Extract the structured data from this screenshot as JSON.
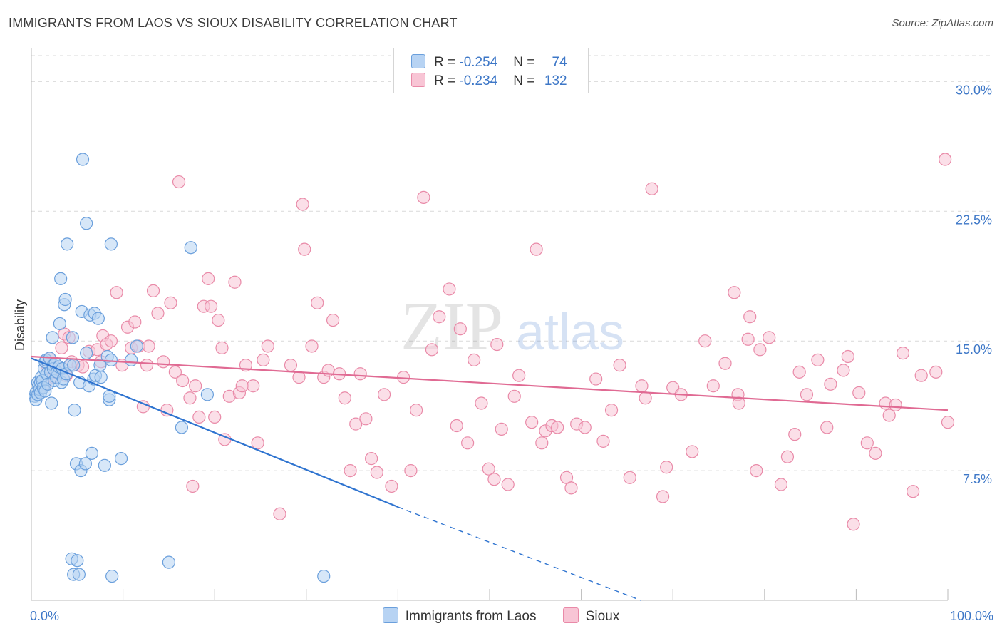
{
  "header": {
    "title": "IMMIGRANTS FROM LAOS VS SIOUX DISABILITY CORRELATION CHART",
    "source": "Source: ZipAtlas.com"
  },
  "watermark": {
    "zip": "ZIP",
    "atlas": "atlas"
  },
  "legend": {
    "rows": [
      {
        "r_label": "R = ",
        "r_value": "-0.254",
        "n_label": "N = ",
        "n_value": "74"
      },
      {
        "r_label": "R = ",
        "r_value": "-0.234",
        "n_label": "N = ",
        "n_value": "132"
      }
    ]
  },
  "colors": {
    "blue_fill": "#b7d3f3",
    "blue_stroke": "#6a9fdc",
    "blue_line": "#2f74d0",
    "pink_fill": "#f8c5d5",
    "pink_stroke": "#e98aa8",
    "pink_line": "#e06a93",
    "grid": "#d9d9d9",
    "tick_text": "#3d77c7"
  },
  "chart_data": {
    "type": "scatter",
    "title": "IMMIGRANTS FROM LAOS VS SIOUX DISABILITY CORRELATION CHART",
    "xlabel": "",
    "ylabel": "Disability",
    "xlim": [
      0,
      100
    ],
    "ylim": [
      0,
      31.5
    ],
    "x_ticks": [
      "0.0%",
      "100.0%"
    ],
    "y_ticks": [
      {
        "value": 7.5,
        "label": "7.5%"
      },
      {
        "value": 15.0,
        "label": "15.0%"
      },
      {
        "value": 22.5,
        "label": "22.5%"
      },
      {
        "value": 30.0,
        "label": "30.0%"
      }
    ],
    "grid": true,
    "legend_position": "top-center",
    "series": [
      {
        "name": "Immigrants from Laos",
        "color": "#6a9fdc",
        "trend": {
          "x": [
            0,
            40
          ],
          "y": [
            14.0,
            5.4
          ],
          "dashed_to": [
            66.5,
            0
          ]
        },
        "points": [
          [
            0.4,
            11.8
          ],
          [
            0.5,
            12.0
          ],
          [
            0.5,
            11.6
          ],
          [
            0.7,
            12.6
          ],
          [
            0.7,
            11.9
          ],
          [
            0.8,
            12.4
          ],
          [
            0.9,
            12.2
          ],
          [
            1.0,
            12.6
          ],
          [
            1.0,
            12.0
          ],
          [
            1.1,
            12.9
          ],
          [
            1.2,
            12.7
          ],
          [
            1.3,
            12.3
          ],
          [
            1.4,
            13.4
          ],
          [
            1.5,
            12.1
          ],
          [
            1.5,
            13.8
          ],
          [
            1.6,
            13.9
          ],
          [
            1.7,
            13.1
          ],
          [
            1.8,
            12.5
          ],
          [
            2.0,
            14.0
          ],
          [
            2.1,
            13.2
          ],
          [
            2.2,
            11.4
          ],
          [
            2.3,
            15.2
          ],
          [
            2.4,
            13.6
          ],
          [
            2.4,
            13.4
          ],
          [
            2.5,
            12.7
          ],
          [
            2.6,
            13.7
          ],
          [
            2.7,
            12.9
          ],
          [
            2.8,
            13.2
          ],
          [
            3.0,
            13.5
          ],
          [
            3.1,
            16.0
          ],
          [
            3.2,
            18.6
          ],
          [
            3.3,
            12.6
          ],
          [
            3.4,
            13.4
          ],
          [
            3.5,
            12.8
          ],
          [
            3.6,
            17.1
          ],
          [
            3.7,
            17.4
          ],
          [
            3.8,
            13.1
          ],
          [
            3.9,
            20.6
          ],
          [
            4.2,
            13.6
          ],
          [
            4.5,
            15.2
          ],
          [
            4.6,
            13.6
          ],
          [
            4.7,
            11.0
          ],
          [
            4.9,
            7.9
          ],
          [
            5.3,
            12.6
          ],
          [
            5.4,
            7.5
          ],
          [
            5.5,
            16.7
          ],
          [
            5.6,
            25.5
          ],
          [
            5.9,
            7.9
          ],
          [
            6.0,
            21.8
          ],
          [
            6.3,
            12.4
          ],
          [
            6.4,
            16.5
          ],
          [
            6.6,
            8.5
          ],
          [
            6.8,
            12.8
          ],
          [
            6.9,
            16.6
          ],
          [
            7.0,
            13.0
          ],
          [
            7.3,
            16.3
          ],
          [
            7.5,
            13.6
          ],
          [
            7.6,
            12.9
          ],
          [
            8.0,
            7.8
          ],
          [
            8.3,
            14.1
          ],
          [
            8.5,
            11.6
          ],
          [
            8.7,
            20.6
          ],
          [
            8.7,
            13.9
          ],
          [
            8.5,
            11.8
          ],
          [
            9.8,
            8.2
          ],
          [
            10.9,
            13.9
          ],
          [
            11.5,
            14.7
          ],
          [
            4.4,
            2.4
          ],
          [
            4.6,
            1.5
          ],
          [
            5.0,
            2.3
          ],
          [
            8.8,
            1.4
          ],
          [
            15.0,
            2.2
          ],
          [
            17.4,
            20.4
          ],
          [
            19.2,
            11.9
          ],
          [
            31.9,
            1.4
          ],
          [
            5.2,
            1.5
          ],
          [
            16.4,
            10.0
          ],
          [
            6.0,
            14.3
          ]
        ]
      },
      {
        "name": "Sioux",
        "color": "#e98aa8",
        "trend": {
          "x": [
            0,
            100
          ],
          "y": [
            14.1,
            11.0
          ]
        },
        "points": [
          [
            1.5,
            12.5
          ],
          [
            1.8,
            13.5
          ],
          [
            2.0,
            14.0
          ],
          [
            2.4,
            12.9
          ],
          [
            2.6,
            13.2
          ],
          [
            3.0,
            13.5
          ],
          [
            3.3,
            14.6
          ],
          [
            3.6,
            15.4
          ],
          [
            3.8,
            13.0
          ],
          [
            4.1,
            15.2
          ],
          [
            4.4,
            13.8
          ],
          [
            5.1,
            13.6
          ],
          [
            5.6,
            13.5
          ],
          [
            6.3,
            14.4
          ],
          [
            7.2,
            14.5
          ],
          [
            7.6,
            13.8
          ],
          [
            7.8,
            15.3
          ],
          [
            8.2,
            14.8
          ],
          [
            8.7,
            15.0
          ],
          [
            9.3,
            17.8
          ],
          [
            9.9,
            13.6
          ],
          [
            10.5,
            15.8
          ],
          [
            10.9,
            14.6
          ],
          [
            11.3,
            16.1
          ],
          [
            11.7,
            14.7
          ],
          [
            12.2,
            11.2
          ],
          [
            12.6,
            13.6
          ],
          [
            12.8,
            14.7
          ],
          [
            13.3,
            17.9
          ],
          [
            13.8,
            16.6
          ],
          [
            14.4,
            13.8
          ],
          [
            14.8,
            11.0
          ],
          [
            15.2,
            17.2
          ],
          [
            15.7,
            13.2
          ],
          [
            16.1,
            24.2
          ],
          [
            16.5,
            12.7
          ],
          [
            17.3,
            11.7
          ],
          [
            17.6,
            6.6
          ],
          [
            17.9,
            12.4
          ],
          [
            18.3,
            10.6
          ],
          [
            18.8,
            17.0
          ],
          [
            19.3,
            18.6
          ],
          [
            19.6,
            17.0
          ],
          [
            20.0,
            10.6
          ],
          [
            20.4,
            16.2
          ],
          [
            20.8,
            14.6
          ],
          [
            21.1,
            9.3
          ],
          [
            21.6,
            11.8
          ],
          [
            22.2,
            18.4
          ],
          [
            22.7,
            12.0
          ],
          [
            23.0,
            12.4
          ],
          [
            23.4,
            13.6
          ],
          [
            24.2,
            12.4
          ],
          [
            24.7,
            9.1
          ],
          [
            25.3,
            13.9
          ],
          [
            25.8,
            14.7
          ],
          [
            27.1,
            5.0
          ],
          [
            28.3,
            13.6
          ],
          [
            29.2,
            12.9
          ],
          [
            29.6,
            22.9
          ],
          [
            29.8,
            20.3
          ],
          [
            30.6,
            14.7
          ],
          [
            31.2,
            17.2
          ],
          [
            31.9,
            12.9
          ],
          [
            32.4,
            13.3
          ],
          [
            32.9,
            16.2
          ],
          [
            33.6,
            13.1
          ],
          [
            34.2,
            11.7
          ],
          [
            34.8,
            7.5
          ],
          [
            35.4,
            10.2
          ],
          [
            35.9,
            13.1
          ],
          [
            36.5,
            10.5
          ],
          [
            37.1,
            8.2
          ],
          [
            37.7,
            7.4
          ],
          [
            38.5,
            11.9
          ],
          [
            39.3,
            6.6
          ],
          [
            40.6,
            12.9
          ],
          [
            41.4,
            7.5
          ],
          [
            42.0,
            11.0
          ],
          [
            42.8,
            23.3
          ],
          [
            43.7,
            14.5
          ],
          [
            44.5,
            16.4
          ],
          [
            45.6,
            18.0
          ],
          [
            46.4,
            10.1
          ],
          [
            47.6,
            9.1
          ],
          [
            48.3,
            13.9
          ],
          [
            49.1,
            11.4
          ],
          [
            49.9,
            7.6
          ],
          [
            50.5,
            7.0
          ],
          [
            51.3,
            9.9
          ],
          [
            52.0,
            6.7
          ],
          [
            52.7,
            11.8
          ],
          [
            53.2,
            13.0
          ],
          [
            54.6,
            10.3
          ],
          [
            55.1,
            20.3
          ],
          [
            55.7,
            9.1
          ],
          [
            56.1,
            9.8
          ],
          [
            56.8,
            10.1
          ],
          [
            57.4,
            10.0
          ],
          [
            58.4,
            7.1
          ],
          [
            58.9,
            6.5
          ],
          [
            59.5,
            10.2
          ],
          [
            60.4,
            10.0
          ],
          [
            61.6,
            12.8
          ],
          [
            62.4,
            9.2
          ],
          [
            63.3,
            11.0
          ],
          [
            64.2,
            13.6
          ],
          [
            65.3,
            7.1
          ],
          [
            66.6,
            12.4
          ],
          [
            67.0,
            11.7
          ],
          [
            67.7,
            23.8
          ],
          [
            68.9,
            6.0
          ],
          [
            69.3,
            7.7
          ],
          [
            70.0,
            12.3
          ],
          [
            70.9,
            11.9
          ],
          [
            72.1,
            8.6
          ],
          [
            73.5,
            15.0
          ],
          [
            74.4,
            12.4
          ],
          [
            75.7,
            13.7
          ],
          [
            76.7,
            17.8
          ],
          [
            77.1,
            11.9
          ],
          [
            78.2,
            15.1
          ],
          [
            78.4,
            16.4
          ],
          [
            79.1,
            7.5
          ],
          [
            80.5,
            15.2
          ],
          [
            82.5,
            8.3
          ],
          [
            83.3,
            9.6
          ],
          [
            83.8,
            13.2
          ],
          [
            84.6,
            11.9
          ],
          [
            85.8,
            13.9
          ],
          [
            86.8,
            10.0
          ],
          [
            87.2,
            12.5
          ],
          [
            88.6,
            13.3
          ],
          [
            89.1,
            14.1
          ],
          [
            89.7,
            4.4
          ],
          [
            90.3,
            12.0
          ],
          [
            91.2,
            9.1
          ],
          [
            92.1,
            8.5
          ],
          [
            93.2,
            11.4
          ],
          [
            93.6,
            10.7
          ],
          [
            94.3,
            11.3
          ],
          [
            95.1,
            14.3
          ],
          [
            96.2,
            6.3
          ],
          [
            97.1,
            13.0
          ],
          [
            98.7,
            13.2
          ],
          [
            100.0,
            10.3
          ],
          [
            99.7,
            25.5
          ],
          [
            77.2,
            11.4
          ],
          [
            79.5,
            14.5
          ],
          [
            81.8,
            6.7
          ],
          [
            50.8,
            14.8
          ],
          [
            46.8,
            15.7
          ]
        ]
      }
    ]
  }
}
